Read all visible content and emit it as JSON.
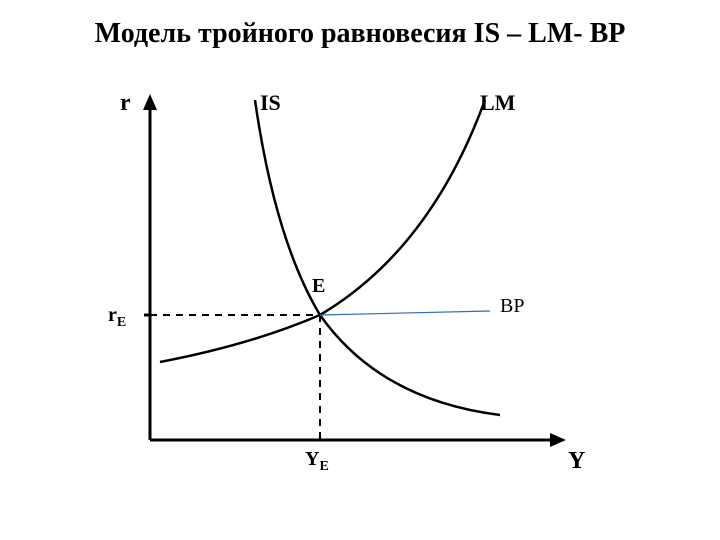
{
  "title": "Модель тройного равновесия IS – LM- BP",
  "chart": {
    "type": "line",
    "axis_color": "#000000",
    "axis_width": 3,
    "curve_color": "#000000",
    "curve_width": 2.5,
    "dashed_color": "#000000",
    "bp_color": "#2f6db3",
    "bp_width": 1.2,
    "labels": {
      "y_axis": "r",
      "x_axis": "Y",
      "is": "IS",
      "lm": "LM",
      "eq_point": "E",
      "bp": "BP",
      "r_e": "r",
      "r_e_sub": "E",
      "y_e": "Y",
      "y_e_sub": "E"
    },
    "fontsize": {
      "axis": 24,
      "curve_label": 22,
      "point": 20,
      "sub": 14
    }
  }
}
